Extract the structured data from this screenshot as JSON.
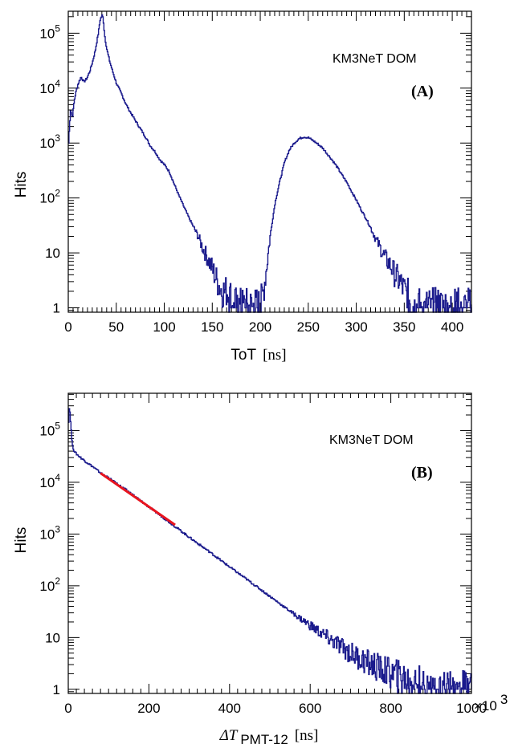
{
  "colors": {
    "histogram": "#1a1a8c",
    "fit": "#e8141e",
    "frame": "#000000"
  },
  "chart_data": [
    {
      "type": "line",
      "panel_label": "(A)",
      "annotation": "KM3NeT DOM",
      "xlabel": "ToT",
      "xunit": "[ns]",
      "ylabel": "Hits",
      "xlim": [
        0,
        420
      ],
      "ylim_log10": [
        -0.08,
        5.4
      ],
      "log_y": true,
      "xticks": [
        0,
        50,
        100,
        150,
        200,
        250,
        300,
        350,
        400
      ],
      "xtick_labels": [
        "0",
        "50",
        "100",
        "150",
        "200",
        "250",
        "300",
        "350",
        "400"
      ],
      "yticks": [
        {
          "value": 1,
          "base": "1",
          "exp": ""
        },
        {
          "value": 10,
          "base": "10",
          "exp": ""
        },
        {
          "value": 100,
          "base": "10",
          "exp": "2"
        },
        {
          "value": 1000,
          "base": "10",
          "exp": "3"
        },
        {
          "value": 10000,
          "base": "10",
          "exp": "4"
        },
        {
          "value": 100000,
          "base": "10",
          "exp": "5"
        }
      ],
      "series": [
        {
          "x": [
            0,
            2,
            4,
            6,
            8,
            10,
            13,
            16,
            19,
            22,
            25,
            28,
            31,
            33,
            35,
            36,
            37,
            38,
            40,
            43,
            46,
            50,
            55,
            60,
            65,
            70,
            75,
            80,
            85,
            90,
            95,
            100,
            105,
            110,
            115,
            120,
            125,
            130,
            135,
            140,
            145,
            150,
            155,
            160,
            165,
            170,
            175,
            180,
            185,
            190,
            195,
            198,
            200,
            203,
            206,
            210,
            215,
            220,
            225,
            230,
            235,
            240,
            245,
            250,
            255,
            260,
            265,
            270,
            275,
            280,
            285,
            290,
            295,
            300,
            305,
            310,
            315,
            320,
            325,
            330,
            335,
            340,
            345,
            350,
            355,
            360,
            365,
            370,
            380,
            390,
            400,
            410,
            420
          ],
          "y": [
            1000,
            4000,
            3000,
            6000,
            9000,
            12000,
            16000,
            13000,
            15000,
            20000,
            30000,
            50000,
            100000,
            180000,
            210000,
            190000,
            120000,
            80000,
            50000,
            30000,
            20000,
            12000,
            8000,
            5000,
            3500,
            2500,
            1800,
            1300,
            900,
            700,
            500,
            400,
            300,
            180,
            110,
            70,
            45,
            30,
            20,
            12,
            8,
            5,
            3,
            2,
            2,
            1.5,
            1,
            1,
            1,
            1,
            1,
            1,
            1,
            2,
            5,
            20,
            80,
            200,
            450,
            750,
            1000,
            1200,
            1300,
            1250,
            1100,
            950,
            800,
            620,
            480,
            360,
            260,
            190,
            130,
            90,
            60,
            42,
            28,
            18,
            12,
            8,
            6,
            4,
            3,
            2,
            1.5,
            1,
            1,
            1,
            1,
            1,
            1,
            1,
            1
          ]
        }
      ]
    },
    {
      "type": "line",
      "panel_label": "(B)",
      "annotation": "KM3NeT DOM",
      "xlabel": "ΔT",
      "xlabel_sub": "PMT-12",
      "xunit": "[ns]",
      "ylabel": "Hits",
      "x_multiplier": "×10",
      "x_multiplier_exp": "3",
      "xlim": [
        0,
        1000
      ],
      "ylim_log10": [
        -0.08,
        5.72
      ],
      "log_y": true,
      "xticks": [
        0,
        200,
        400,
        600,
        800,
        1000
      ],
      "xtick_labels": [
        "0",
        "200",
        "400",
        "600",
        "800",
        "1000"
      ],
      "yticks": [
        {
          "value": 1,
          "base": "1",
          "exp": ""
        },
        {
          "value": 10,
          "base": "10",
          "exp": ""
        },
        {
          "value": 100,
          "base": "10",
          "exp": "2"
        },
        {
          "value": 1000,
          "base": "10",
          "exp": "3"
        },
        {
          "value": 10000,
          "base": "10",
          "exp": "4"
        },
        {
          "value": 100000,
          "base": "10",
          "exp": "5"
        }
      ],
      "series": [
        {
          "x": [
            0,
            2,
            4,
            6,
            8,
            10,
            13,
            16,
            20,
            30,
            40,
            60,
            80,
            100,
            150,
            200,
            250,
            300,
            350,
            400,
            450,
            500,
            550,
            600,
            650,
            700,
            750,
            800,
            850,
            900,
            950,
            1000
          ],
          "y": [
            150000,
            300000,
            200000,
            120000,
            70000,
            50000,
            42000,
            38000,
            35000,
            30000,
            26000,
            20000,
            15000,
            12000,
            6500,
            3300,
            1700,
            860,
            450,
            230,
            120,
            62,
            32,
            17,
            9,
            5,
            3,
            2,
            1.5,
            1,
            1,
            1
          ]
        }
      ],
      "fit": {
        "x": [
          80,
          265
        ],
        "y": [
          15000,
          1500
        ]
      }
    }
  ]
}
